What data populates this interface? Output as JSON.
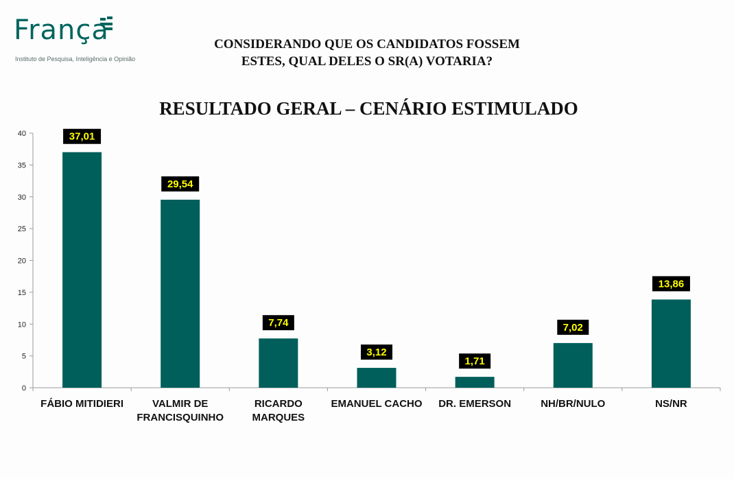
{
  "brand": {
    "name": "França",
    "subtitle": "Instituto de Pesquisa, Inteligência e Opinião",
    "color": "#00655d"
  },
  "question": {
    "line1": "CONSIDERANDO QUE OS CANDIDATOS FOSSEM",
    "line2": "ESTES, QUAL DELES O SR(A) VOTARIA?"
  },
  "chart_data": {
    "type": "bar",
    "title": "RESULTADO GERAL – CENÁRIO ESTIMULADO",
    "categories": [
      [
        "FÁBIO MITIDIERI"
      ],
      [
        "VALMIR DE",
        "FRANCISQUINHO"
      ],
      [
        "RICARDO",
        "MARQUES"
      ],
      [
        "EMANUEL CACHO"
      ],
      [
        "DR. EMERSON"
      ],
      [
        "NH/BR/NULO"
      ],
      [
        "NS/NR"
      ]
    ],
    "values": [
      37.01,
      29.54,
      7.74,
      3.12,
      1.71,
      7.02,
      13.86
    ],
    "data_labels": [
      "37,01",
      "29,54",
      "7,74",
      "3,12",
      "1,71",
      "7,02",
      "13,86"
    ],
    "y_ticks": [
      "0",
      "5",
      "10",
      "15",
      "20",
      "25",
      "30",
      "35",
      "40"
    ],
    "ylim": [
      0,
      40
    ],
    "grid": false,
    "bar_color": "#005f5a",
    "label_bg": "#000000",
    "label_color": "#ffff00"
  }
}
